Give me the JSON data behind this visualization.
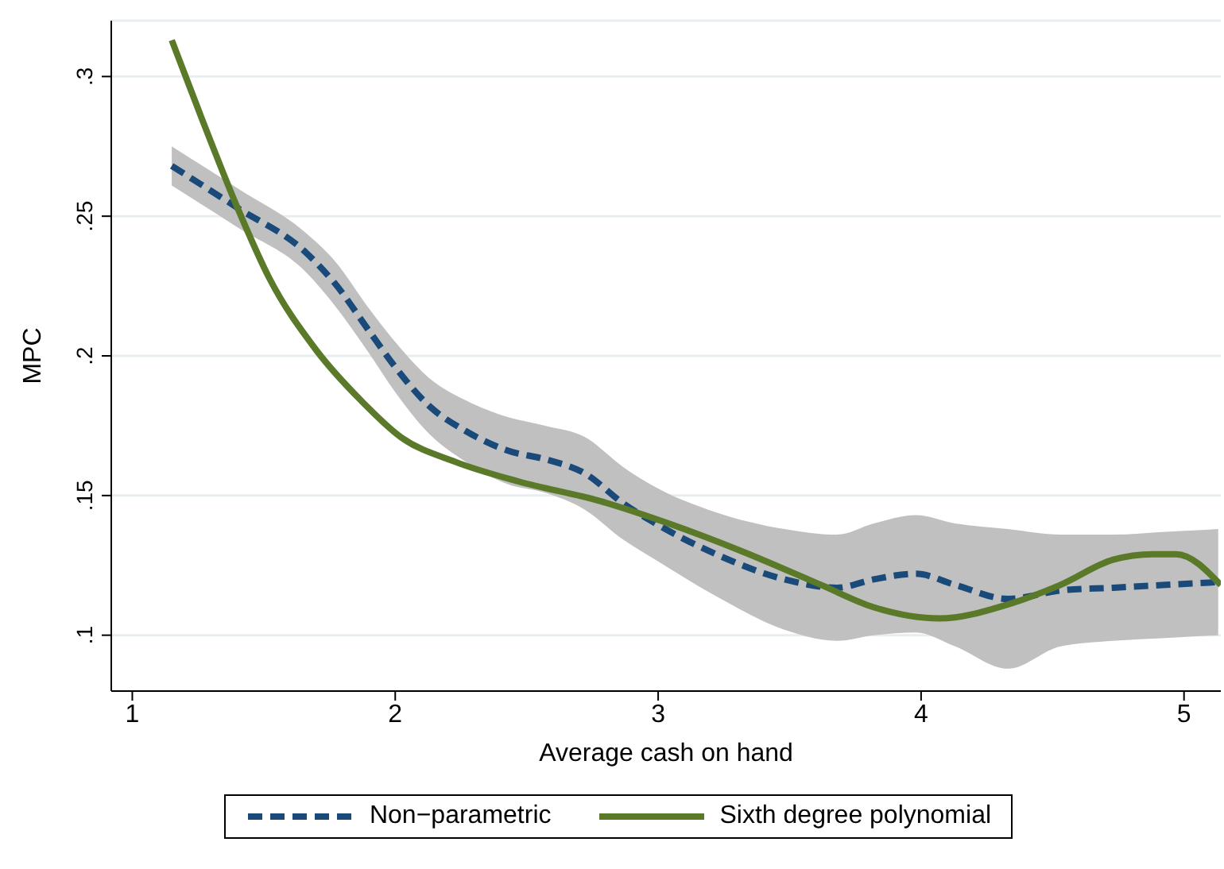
{
  "chart_data": {
    "type": "line",
    "xlabel": "Average cash on hand",
    "ylabel": "MPC",
    "xlim": [
      0.92,
      5.14
    ],
    "xticks": [
      1,
      2,
      3,
      4,
      5
    ],
    "ylim": [
      0.08,
      0.32
    ],
    "yticks": [
      {
        "value": 0.1,
        "label": ".1"
      },
      {
        "value": 0.15,
        "label": ".15"
      },
      {
        "value": 0.2,
        "label": ".2"
      },
      {
        "value": 0.25,
        "label": ".25"
      },
      {
        "value": 0.3,
        "label": ".3"
      }
    ],
    "grid": "y",
    "legend": "bottom",
    "marker": "none",
    "series": [
      {
        "name": "Non−parametric",
        "color": "#1a4a7a",
        "line_style": "dashed",
        "x": [
          1.15,
          1.4,
          1.66,
          1.77,
          1.9,
          2.0,
          2.13,
          2.27,
          2.43,
          2.57,
          2.72,
          2.87,
          2.99,
          3.22,
          3.48,
          3.68,
          3.82,
          3.98,
          4.13,
          4.33,
          4.53,
          4.73,
          4.93,
          5.13
        ],
        "values": [
          0.268,
          0.253,
          0.237,
          0.226,
          0.209,
          0.196,
          0.182,
          0.173,
          0.166,
          0.163,
          0.158,
          0.147,
          0.14,
          0.129,
          0.12,
          0.117,
          0.12,
          0.122,
          0.118,
          0.113,
          0.116,
          0.117,
          0.118,
          0.119
        ],
        "lower": [
          0.261,
          0.246,
          0.23,
          0.218,
          0.201,
          0.187,
          0.172,
          0.162,
          0.154,
          0.151,
          0.145,
          0.134,
          0.127,
          0.114,
          0.102,
          0.098,
          0.1,
          0.101,
          0.096,
          0.088,
          0.096,
          0.098,
          0.099,
          0.1
        ],
        "upper": [
          0.275,
          0.26,
          0.244,
          0.234,
          0.217,
          0.205,
          0.192,
          0.184,
          0.178,
          0.175,
          0.171,
          0.16,
          0.153,
          0.144,
          0.138,
          0.136,
          0.14,
          0.143,
          0.14,
          0.138,
          0.136,
          0.136,
          0.137,
          0.138
        ]
      },
      {
        "name": "Sixth degree polynomial",
        "color": "#5a7a2a",
        "line_style": "solid",
        "x": [
          1.15,
          1.26,
          1.4,
          1.52,
          1.7,
          1.87,
          2.02,
          2.23,
          2.47,
          2.78,
          3.04,
          3.32,
          3.62,
          3.82,
          4.07,
          4.33,
          4.53,
          4.73,
          4.88,
          4.97,
          5.14
        ],
        "values": [
          0.313,
          0.286,
          0.253,
          0.228,
          0.202,
          0.184,
          0.171,
          0.162,
          0.155,
          0.148,
          0.14,
          0.13,
          0.118,
          0.11,
          0.106,
          0.111,
          0.118,
          0.127,
          0.129,
          0.129,
          0.118
        ]
      }
    ]
  }
}
